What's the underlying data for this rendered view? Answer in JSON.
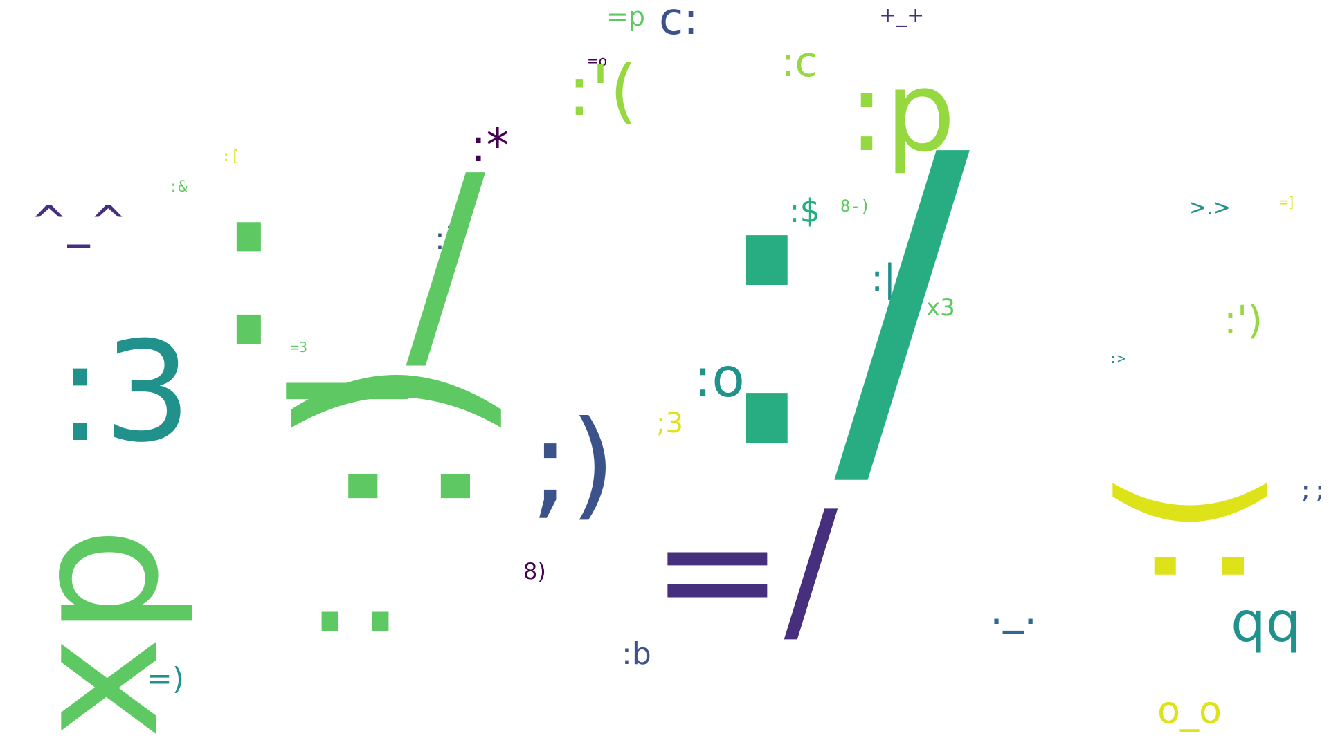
{
  "palette": {
    "dark_purple": "#440154",
    "indigo": "#46307e",
    "blue_violet": "#3b528b",
    "blue_teal": "#31688e",
    "teal": "#21918c",
    "sea_green": "#27ad81",
    "green": "#5ec962",
    "lime": "#95d840",
    "yellow": "#dde318"
  },
  "words": [
    {
      "id": "w01",
      "text": "=p",
      "color": "#5ec962"
    },
    {
      "id": "w02",
      "text": "c:",
      "color": "#3b528b"
    },
    {
      "id": "w03",
      "text": "+_+",
      "color": "#46307e"
    },
    {
      "id": "w04",
      "text": "=o",
      "color": "#440154"
    },
    {
      "id": "w05",
      "text": ":c",
      "color": "#95d840"
    },
    {
      "id": "w06",
      "text": ":'(",
      "color": "#95d840"
    },
    {
      "id": "w07",
      "text": ":p",
      "color": "#95d840"
    },
    {
      "id": "w08",
      "text": ":*",
      "color": "#440154"
    },
    {
      "id": "w09",
      "text": ":[",
      "color": "#dde318"
    },
    {
      "id": "w10",
      "text": ":&",
      "color": "#5ec962"
    },
    {
      "id": "w11",
      "text": "^_^",
      "color": "#46307e"
    },
    {
      "id": "w12",
      "text": ":]",
      "color": "#3b528b"
    },
    {
      "id": "w13",
      "text": ":$",
      "color": "#27ad81"
    },
    {
      "id": "w14",
      "text": "8-)",
      "color": "#5ec962"
    },
    {
      "id": "w15",
      "text": ">.>",
      "color": "#21918c"
    },
    {
      "id": "w16",
      "text": "=]",
      "color": "#dde318"
    },
    {
      "id": "w17",
      "text": ":|",
      "color": "#21918c"
    },
    {
      "id": "w18",
      "text": "x3",
      "color": "#5ec962"
    },
    {
      "id": "w19",
      "text": ":')",
      "color": "#95d840"
    },
    {
      "id": "w20",
      "text": ":3",
      "color": "#21918c"
    },
    {
      "id": "w21",
      "text": "=3",
      "color": "#5ec962"
    },
    {
      "id": "w22",
      "text": ":o",
      "color": "#21918c"
    },
    {
      "id": "w23",
      "text": ":>",
      "color": "#21918c"
    },
    {
      "id": "w24",
      "text": ";3",
      "color": "#dde318"
    },
    {
      "id": "w25",
      "text": ";)",
      "color": "#3b528b"
    },
    {
      "id": "w26",
      "text": ";;",
      "color": "#3b528b"
    },
    {
      "id": "w27",
      "text": "8)",
      "color": "#440154"
    },
    {
      "id": "w28",
      "text": "=/",
      "color": "#46307e"
    },
    {
      "id": "w29",
      "text": ":b",
      "color": "#3b528b"
    },
    {
      "id": "w30",
      "text": "._.",
      "color": "#31688e"
    },
    {
      "id": "w31",
      "text": "qq",
      "color": "#21918c"
    },
    {
      "id": "w32",
      "text": "=)",
      "color": "#21918c"
    },
    {
      "id": "w33",
      "text": "o_o",
      "color": "#dde318"
    },
    {
      "id": "w34",
      "text": "xp",
      "color": "#5ec962"
    },
    {
      "id": "w35",
      "text": ":/",
      "color": "#27ad81"
    },
    {
      "id": "w36",
      "text": ":_/",
      "color": "#5ec962"
    },
    {
      "id": "w37",
      "text": ":(",
      "color": "#dde318"
    },
    {
      "id": "w38",
      "text": "..",
      "color": "#5ec962"
    },
    {
      "id": "w39",
      "text": ":)",
      "color": "#5ec962"
    }
  ]
}
